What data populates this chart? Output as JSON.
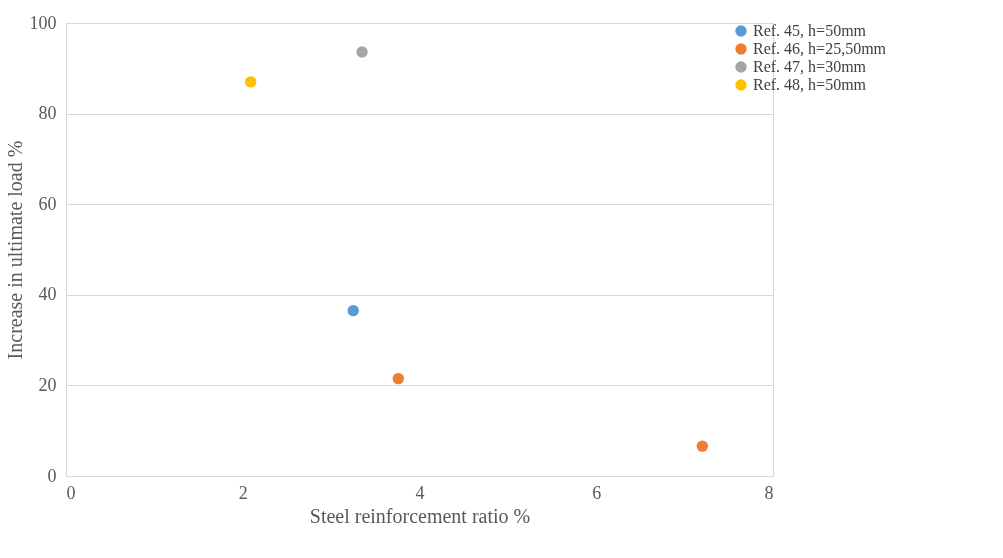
{
  "chart_data": {
    "type": "scatter",
    "xlabel": "Steel reinforcement ratio %",
    "ylabel": "Increase in ultimate load %",
    "xlim": [
      0,
      8
    ],
    "xticks": [
      0,
      2,
      4,
      6,
      8
    ],
    "ylim": [
      0,
      100
    ],
    "yticks": [
      0,
      20,
      40,
      60,
      80,
      100
    ],
    "grid": "y",
    "legend": "right",
    "marker": "circle",
    "series": [
      {
        "name": "Ref. 45, h=50mm",
        "color": "#5b9bd5",
        "x": [
          3.25
        ],
        "values": [
          36.5
        ]
      },
      {
        "name": "Ref. 46, h=25,50mm",
        "color": "#ed7d31",
        "x": [
          3.76,
          7.2
        ],
        "values": [
          21.5,
          6.6
        ]
      },
      {
        "name": "Ref. 47, h=30mm",
        "color": "#a5a5a5",
        "x": [
          3.35
        ],
        "values": [
          93.6
        ]
      },
      {
        "name": "Ref. 48, h=50mm",
        "color": "#ffc000",
        "x": [
          2.09
        ],
        "values": [
          87
        ]
      }
    ]
  }
}
